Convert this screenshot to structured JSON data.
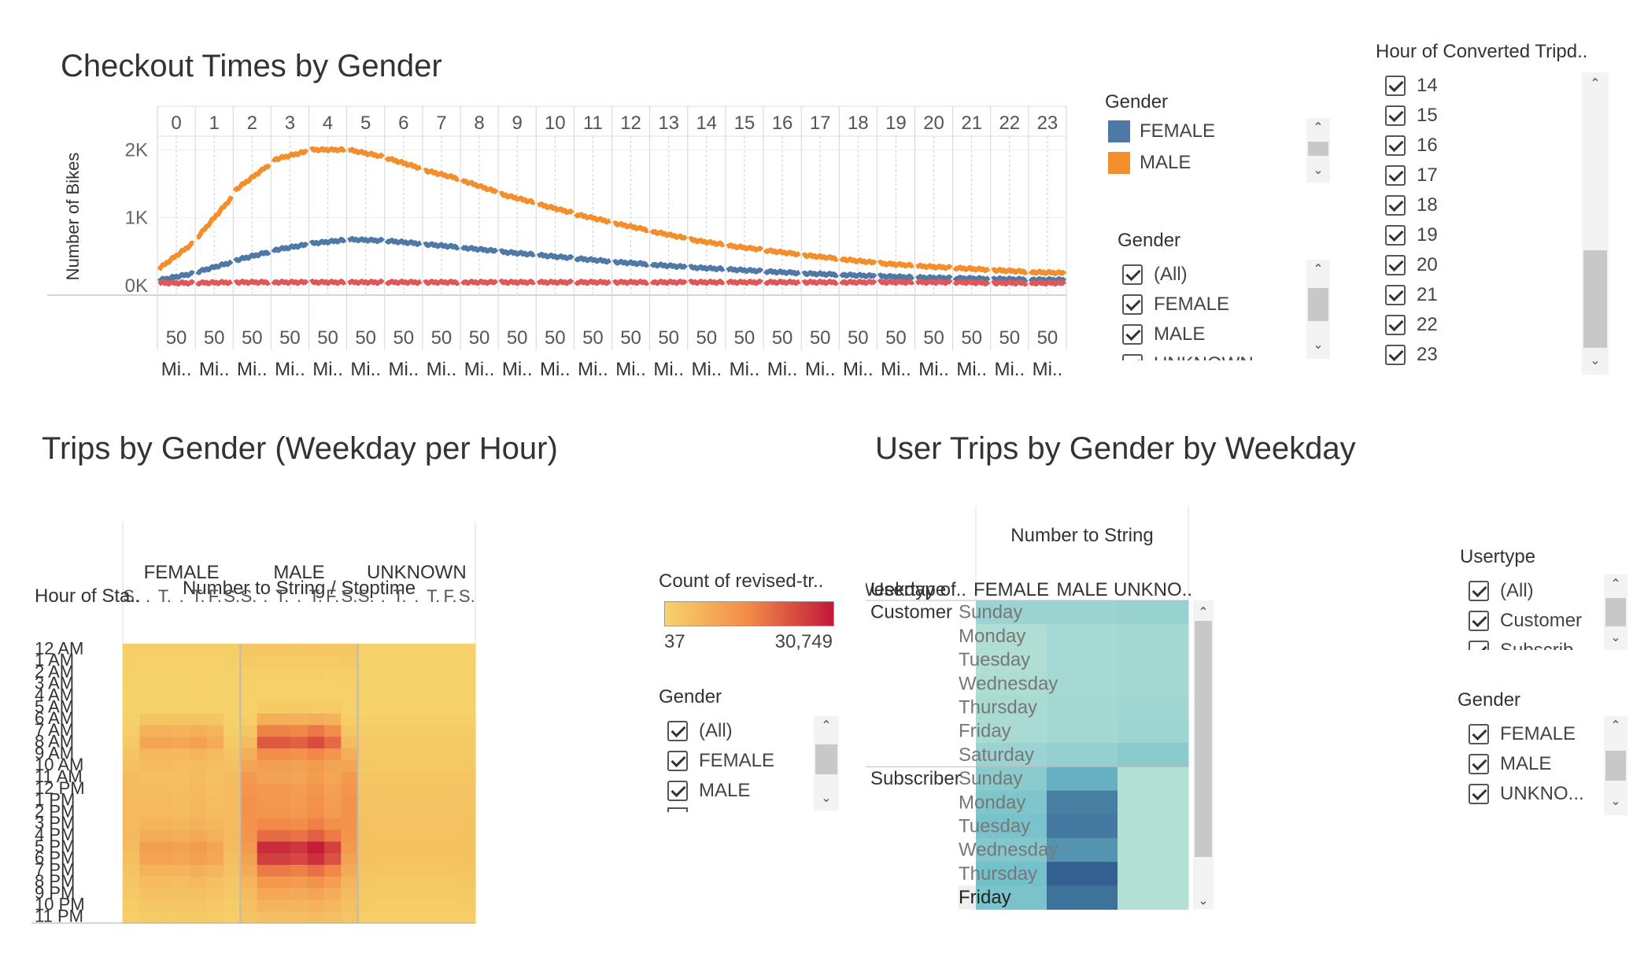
{
  "top_chart": {
    "title": "Checkout Times by Gender",
    "ylabel": "Number of Bikes",
    "y_ticks": [
      "2K",
      "1K",
      "0K"
    ],
    "hours": [
      "0",
      "1",
      "2",
      "3",
      "4",
      "5",
      "6",
      "7",
      "8",
      "9",
      "10",
      "11",
      "12",
      "13",
      "14",
      "15",
      "16",
      "17",
      "18",
      "19",
      "20",
      "21",
      "22",
      "23"
    ],
    "bottom_tick": "50",
    "bottom_label": "Mi.."
  },
  "gender_legend": {
    "title": "Gender",
    "items": [
      {
        "label": "FEMALE",
        "color": "#4e79a7"
      },
      {
        "label": "MALE",
        "color": "#f28e2b"
      }
    ]
  },
  "gender_filter_1": {
    "title": "Gender",
    "items": [
      "(All)",
      "FEMALE",
      "MALE"
    ],
    "cut_item": "UNKNOWN"
  },
  "hour_filter": {
    "title": "Hour of Converted Tripd..",
    "items": [
      "14",
      "15",
      "16",
      "17",
      "18",
      "19",
      "20",
      "21",
      "22",
      "23"
    ]
  },
  "heatmap": {
    "title": "Trips by Gender (Weekday per Hour)",
    "col_header_title": "Number to String  /  Stoptime",
    "row_header_title": "Hour of Sta..",
    "groups": [
      "FEMALE",
      "MALE",
      "UNKNOWN"
    ],
    "day_ticks": [
      "S.",
      ".",
      "T.",
      ".",
      "T.",
      "F.",
      "S."
    ],
    "hours": [
      "12 AM",
      "1 AM",
      "2 AM",
      "3 AM",
      "4 AM",
      "5 AM",
      "6 AM",
      "7 AM",
      "8 AM",
      "9 AM",
      "10 AM",
      "11 AM",
      "12 PM",
      "1 PM",
      "2 PM",
      "3 PM",
      "4 PM",
      "5 PM",
      "6 PM",
      "7 PM",
      "8 PM",
      "9 PM",
      "10 PM",
      "11 PM"
    ]
  },
  "color_legend": {
    "title": "Count of revised-tr..",
    "min_label": "37",
    "max_label": "30,749",
    "min_color": "#f6d36a",
    "mid_color": "#f28a48",
    "max_color": "#c2183a"
  },
  "gender_filter_2": {
    "title": "Gender",
    "items": [
      "(All)",
      "FEMALE",
      "MALE"
    ]
  },
  "weekday_table": {
    "title": "User Trips by Gender by Weekday",
    "col_header_title": "Number to String",
    "usertype_header": "Usertype",
    "weekday_header": "Weekday of..",
    "columns": [
      "FEMALE",
      "MALE",
      "UNKNO.."
    ],
    "usertypes": [
      "Customer",
      "Subscriber"
    ],
    "customer_days": [
      "Sunday",
      "Monday",
      "Tuesday",
      "Wednesday",
      "Thursday",
      "Friday",
      "Saturday"
    ],
    "subscriber_days": [
      "Sunday",
      "Monday",
      "Tuesday",
      "Wednesday",
      "Thursday",
      "Friday"
    ]
  },
  "usertype_filter": {
    "title": "Usertype",
    "items": [
      "(All)",
      "Customer"
    ],
    "cut_item": "Subscrib.."
  },
  "gender_filter_3": {
    "title": "Gender",
    "items": [
      "FEMALE",
      "MALE",
      "UNKNO..."
    ]
  },
  "chart_data": [
    {
      "type": "line",
      "title": "Checkout Times by Gender",
      "xlabel": "",
      "ylabel": "Number of Bikes",
      "x": [
        "0",
        "1",
        "2",
        "3",
        "4",
        "5",
        "6",
        "7",
        "8",
        "9",
        "10",
        "11",
        "12",
        "13",
        "14",
        "15",
        "16",
        "17",
        "18",
        "19",
        "20",
        "21",
        "22",
        "23"
      ],
      "ylim": [
        0,
        2200
      ],
      "series": [
        {
          "name": "MALE",
          "color": "#f28e2b",
          "values": [
            250,
            700,
            1400,
            1850,
            2000,
            2000,
            1880,
            1700,
            1550,
            1350,
            1200,
            1050,
            920,
            800,
            680,
            590,
            520,
            450,
            390,
            330,
            290,
            260,
            230,
            200
          ]
        },
        {
          "name": "FEMALE",
          "color": "#4e79a7",
          "values": [
            80,
            200,
            370,
            520,
            620,
            680,
            660,
            610,
            560,
            500,
            450,
            400,
            350,
            310,
            270,
            240,
            210,
            180,
            160,
            140,
            120,
            110,
            100,
            90
          ]
        },
        {
          "name": "",
          "color": "#e15759",
          "values": [
            40,
            40,
            50,
            50,
            50,
            50,
            50,
            50,
            50,
            50,
            50,
            50,
            50,
            50,
            50,
            50,
            50,
            50,
            50,
            50,
            50,
            50,
            40,
            40
          ]
        }
      ],
      "grid": true
    },
    {
      "type": "heatmap",
      "title": "Trips by Gender (Weekday per Hour)",
      "groups": [
        "FEMALE",
        "MALE",
        "UNKNOWN"
      ],
      "hours": [
        "12 AM",
        "1 AM",
        "2 AM",
        "3 AM",
        "4 AM",
        "5 AM",
        "6 AM",
        "7 AM",
        "8 AM",
        "9 AM",
        "10 AM",
        "11 AM",
        "12 PM",
        "1 PM",
        "2 PM",
        "3 PM",
        "4 PM",
        "5 PM",
        "6 PM",
        "7 PM",
        "8 PM",
        "9 PM",
        "10 PM",
        "11 PM"
      ],
      "scale": [
        37,
        30749
      ],
      "female_weekday_hour": [
        1200,
        700,
        400,
        250,
        250,
        600,
        3200,
        7000,
        9500,
        6000,
        4800,
        4500,
        5000,
        5200,
        5400,
        6500,
        8200,
        11000,
        10000,
        7000,
        5000,
        3800,
        2800,
        1900
      ],
      "male_weekday_hour": [
        3000,
        1800,
        1000,
        700,
        700,
        1800,
        7500,
        16500,
        22000,
        14500,
        11000,
        10500,
        12000,
        12500,
        13000,
        15500,
        19500,
        28000,
        25500,
        17500,
        12500,
        9000,
        6500,
        4500
      ],
      "unknown_hour": [
        400,
        300,
        200,
        150,
        150,
        300,
        900,
        1500,
        2200,
        2000,
        2300,
        2600,
        3000,
        3200,
        3300,
        3400,
        3500,
        3700,
        3500,
        3000,
        2500,
        2000,
        1600,
        1200
      ]
    },
    {
      "type": "heatmap",
      "title": "User Trips by Gender by Weekday",
      "columns": [
        "FEMALE",
        "MALE",
        "UNKNO.."
      ],
      "rows": [
        {
          "usertype": "Customer",
          "day": "Sunday",
          "values": [
            0.2,
            0.2,
            0.22
          ]
        },
        {
          "usertype": "Customer",
          "day": "Monday",
          "values": [
            0.06,
            0.12,
            0.14
          ]
        },
        {
          "usertype": "Customer",
          "day": "Tuesday",
          "values": [
            0.06,
            0.12,
            0.14
          ]
        },
        {
          "usertype": "Customer",
          "day": "Wednesday",
          "values": [
            0.07,
            0.12,
            0.14
          ]
        },
        {
          "usertype": "Customer",
          "day": "Thursday",
          "values": [
            0.1,
            0.14,
            0.16
          ]
        },
        {
          "usertype": "Customer",
          "day": "Friday",
          "values": [
            0.1,
            0.14,
            0.18
          ]
        },
        {
          "usertype": "Customer",
          "day": "Saturday",
          "values": [
            0.2,
            0.24,
            0.3
          ]
        },
        {
          "usertype": "Subscriber",
          "day": "Sunday",
          "values": [
            0.3,
            0.55,
            0.04
          ]
        },
        {
          "usertype": "Subscriber",
          "day": "Monday",
          "values": [
            0.38,
            0.78,
            0.04
          ]
        },
        {
          "usertype": "Subscriber",
          "day": "Tuesday",
          "values": [
            0.4,
            0.8,
            0.04
          ]
        },
        {
          "usertype": "Subscriber",
          "day": "Wednesday",
          "values": [
            0.34,
            0.68,
            0.04
          ]
        },
        {
          "usertype": "Subscriber",
          "day": "Thursday",
          "values": [
            0.44,
            0.92,
            0.04
          ]
        },
        {
          "usertype": "Subscriber",
          "day": "Friday",
          "values": [
            0.4,
            0.84,
            0.04
          ]
        }
      ]
    }
  ]
}
